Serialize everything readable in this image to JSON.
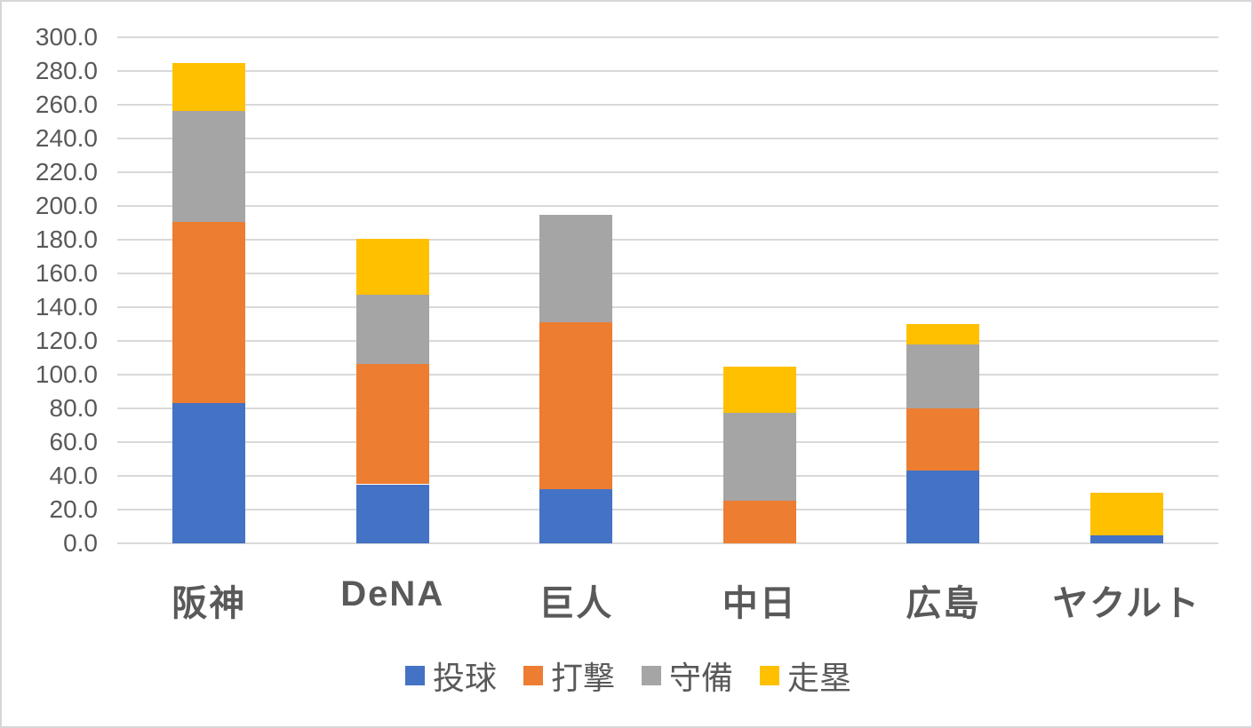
{
  "chart_data": {
    "type": "bar",
    "stacked": true,
    "title": "",
    "xlabel": "",
    "ylabel": "",
    "categories": [
      "阪神",
      "DeNA",
      "巨人",
      "中日",
      "広島",
      "ヤクルト"
    ],
    "series": [
      {
        "name": "投球",
        "color": "#4472C4",
        "values": [
          83.0,
          35.0,
          32.0,
          0.0,
          43.0,
          5.0
        ]
      },
      {
        "name": "打撃",
        "color": "#ED7D31",
        "values": [
          107.5,
          71.5,
          99.0,
          25.5,
          37.0,
          0.0
        ]
      },
      {
        "name": "守備",
        "color": "#A5A5A5",
        "values": [
          66.0,
          41.0,
          63.5,
          52.0,
          38.0,
          0.0
        ]
      },
      {
        "name": "走塁",
        "color": "#FFC000",
        "values": [
          28.0,
          33.0,
          0.0,
          27.5,
          12.0,
          25.0
        ]
      }
    ],
    "totals": [
      284.5,
      180.5,
      194.5,
      105.0,
      130.0,
      30.0
    ],
    "ylim": [
      0,
      300
    ],
    "ytick_step": 20,
    "ytick_decimals": 1,
    "ytick_labels": [
      "0.0",
      "20.0",
      "40.0",
      "60.0",
      "80.0",
      "100.0",
      "120.0",
      "140.0",
      "160.0",
      "180.0",
      "200.0",
      "220.0",
      "240.0",
      "260.0",
      "280.0",
      "300.0"
    ],
    "grid": true,
    "legend_position": "bottom-center",
    "colors": {
      "gridline": "#d9d9d9",
      "axis_text": "#595959",
      "category_text": "#595959",
      "frame_border": "#d6d6d6",
      "background": "#ffffff"
    }
  }
}
